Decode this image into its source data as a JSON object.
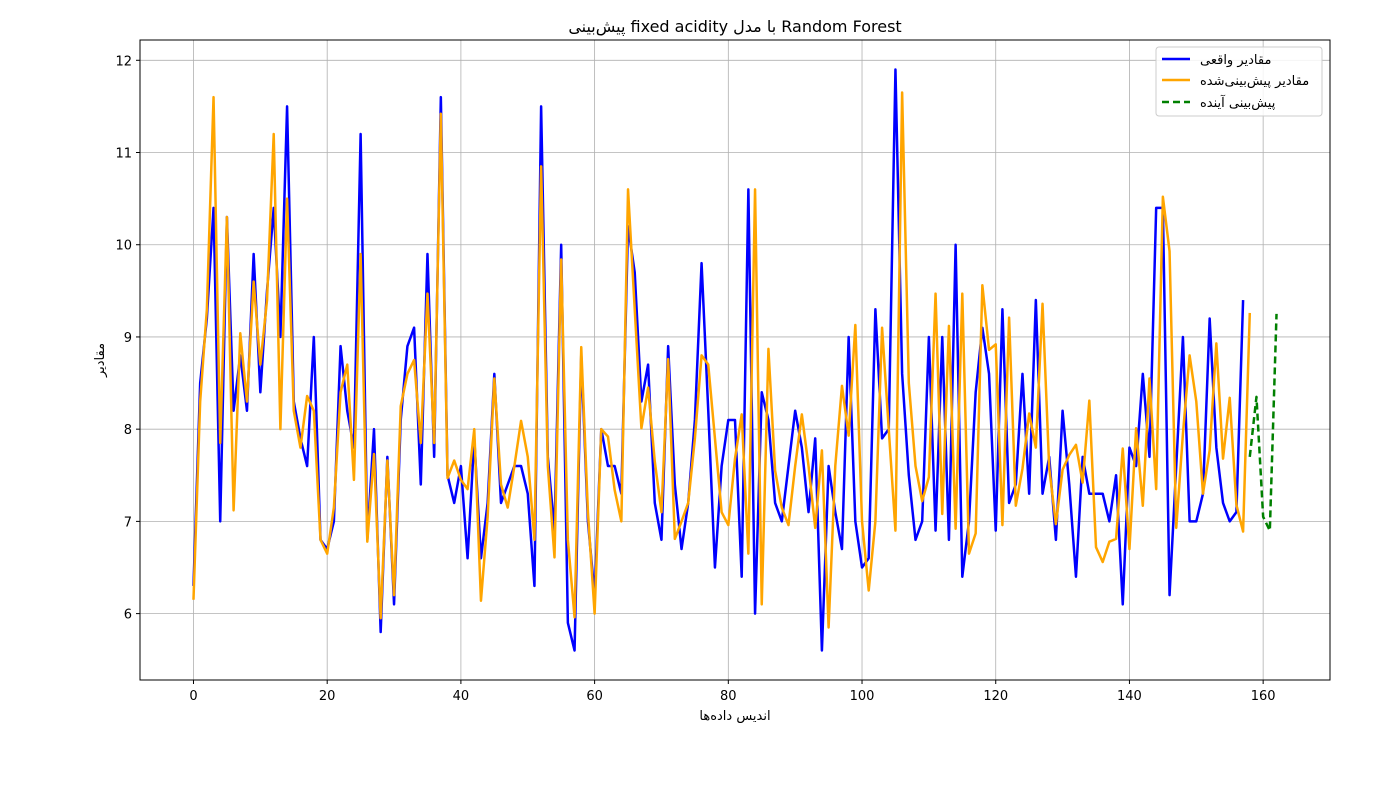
{
  "chart_data": {
    "type": "line",
    "title": "پیش‌بینی fixed acidity با مدل Random Forest",
    "xlabel": "اندیس داده‌ها",
    "ylabel": "مقادیر",
    "xlim": [
      -8,
      170
    ],
    "ylim": [
      5.28,
      12.22
    ],
    "xticks": [
      0,
      20,
      40,
      60,
      80,
      100,
      120,
      140,
      160
    ],
    "yticks": [
      6,
      7,
      8,
      9,
      10,
      11,
      12
    ],
    "grid": true,
    "legend_position": "top-right",
    "series": [
      {
        "name": "مقادیر واقعی",
        "color": "#0000ff",
        "style": "solid",
        "x_start": 0,
        "values": [
          6.3,
          8.5,
          9.2,
          10.4,
          7.0,
          10.3,
          8.2,
          8.8,
          8.2,
          9.9,
          8.4,
          9.5,
          10.4,
          9.0,
          11.5,
          8.3,
          7.9,
          7.6,
          9.0,
          6.8,
          6.7,
          7.0,
          8.9,
          8.2,
          7.8,
          11.2,
          6.8,
          8.0,
          5.8,
          7.7,
          6.1,
          8.1,
          8.9,
          9.1,
          7.4,
          9.9,
          7.7,
          11.6,
          7.5,
          7.2,
          7.6,
          6.6,
          7.9,
          6.6,
          7.2,
          8.6,
          7.2,
          7.4,
          7.6,
          7.6,
          7.3,
          6.3,
          11.5,
          7.7,
          6.9,
          10.0,
          5.9,
          5.6,
          8.8,
          7.0,
          6.2,
          8.0,
          7.6,
          7.6,
          7.3,
          10.2,
          9.7,
          8.3,
          8.7,
          7.2,
          6.8,
          8.9,
          7.4,
          6.7,
          7.2,
          8.1,
          9.8,
          8.2,
          6.5,
          7.6,
          8.1,
          8.1,
          6.4,
          10.6,
          6.0,
          8.4,
          8.1,
          7.2,
          7.0,
          7.6,
          8.2,
          7.8,
          7.1,
          7.9,
          5.6,
          7.6,
          7.1,
          6.7,
          9.0,
          7.0,
          6.5,
          6.6,
          9.3,
          7.9,
          8.0,
          11.9,
          8.6,
          7.5,
          6.8,
          7.0,
          9.0,
          6.9,
          9.0,
          6.8,
          10.0,
          6.4,
          7.0,
          8.4,
          9.1,
          8.6,
          6.9,
          9.3,
          7.2,
          7.4,
          8.6,
          7.3,
          9.4,
          7.3,
          7.7,
          6.8,
          8.2,
          7.4,
          6.4,
          7.7,
          7.3,
          7.3,
          7.3,
          7.0,
          7.5,
          6.1,
          7.8,
          7.6,
          8.6,
          7.7,
          10.4,
          10.4,
          6.2,
          7.6,
          9.0,
          7.0,
          7.0,
          7.3,
          9.2,
          7.8,
          7.2,
          7.0,
          7.1,
          9.4
        ]
      },
      {
        "name": "مقادیر پیش‌بینی‌شده",
        "color": "#ffa500",
        "style": "solid",
        "x_start": 0,
        "values": [
          6.15,
          8.3,
          9.3,
          11.6,
          7.85,
          10.3,
          7.12,
          9.04,
          8.3,
          9.6,
          8.7,
          9.4,
          11.2,
          8.0,
          10.5,
          8.2,
          7.8,
          8.36,
          8.2,
          6.8,
          6.65,
          7.15,
          8.4,
          8.7,
          7.45,
          9.9,
          6.78,
          7.73,
          5.95,
          7.66,
          6.2,
          8.25,
          8.6,
          8.75,
          7.85,
          9.47,
          7.85,
          11.42,
          7.47,
          7.66,
          7.45,
          7.35,
          8.0,
          6.14,
          7.05,
          8.55,
          7.4,
          7.15,
          7.6,
          8.09,
          7.7,
          6.8,
          10.85,
          7.6,
          6.61,
          9.84,
          6.8,
          5.96,
          8.89,
          7.1,
          6.0,
          8.0,
          7.92,
          7.34,
          7.0,
          10.6,
          9.3,
          8.01,
          8.45,
          7.65,
          7.1,
          8.76,
          6.81,
          7.0,
          7.2,
          7.9,
          8.8,
          8.7,
          7.9,
          7.1,
          6.96,
          7.68,
          8.16,
          6.65,
          10.6,
          6.1,
          8.87,
          7.55,
          7.15,
          6.96,
          7.6,
          8.16,
          7.6,
          6.93,
          7.77,
          5.85,
          7.6,
          8.47,
          7.93,
          9.13,
          7.0,
          6.25,
          7.0,
          9.1,
          8.0,
          6.9,
          11.65,
          8.5,
          7.6,
          7.22,
          7.48,
          9.47,
          7.08,
          9.12,
          6.92,
          9.47,
          6.65,
          6.87,
          9.56,
          8.86,
          8.92,
          6.96,
          9.21,
          7.17,
          7.57,
          8.17,
          7.8,
          9.36,
          7.58,
          6.97,
          7.56,
          7.72,
          7.83,
          7.42,
          8.31,
          6.72,
          6.56,
          6.78,
          6.81,
          7.79,
          6.7,
          8.01,
          7.17,
          8.55,
          7.35,
          10.52,
          9.93,
          6.93,
          7.95,
          8.8,
          8.3,
          7.3,
          7.77,
          8.93,
          7.68,
          8.34,
          7.18,
          6.89,
          9.26
        ]
      },
      {
        "name": "پیش‌بینی آینده",
        "color": "#008000",
        "style": "dashed",
        "x_start": 158,
        "values": [
          7.7,
          8.35,
          7.05,
          6.9,
          9.25
        ]
      }
    ]
  }
}
